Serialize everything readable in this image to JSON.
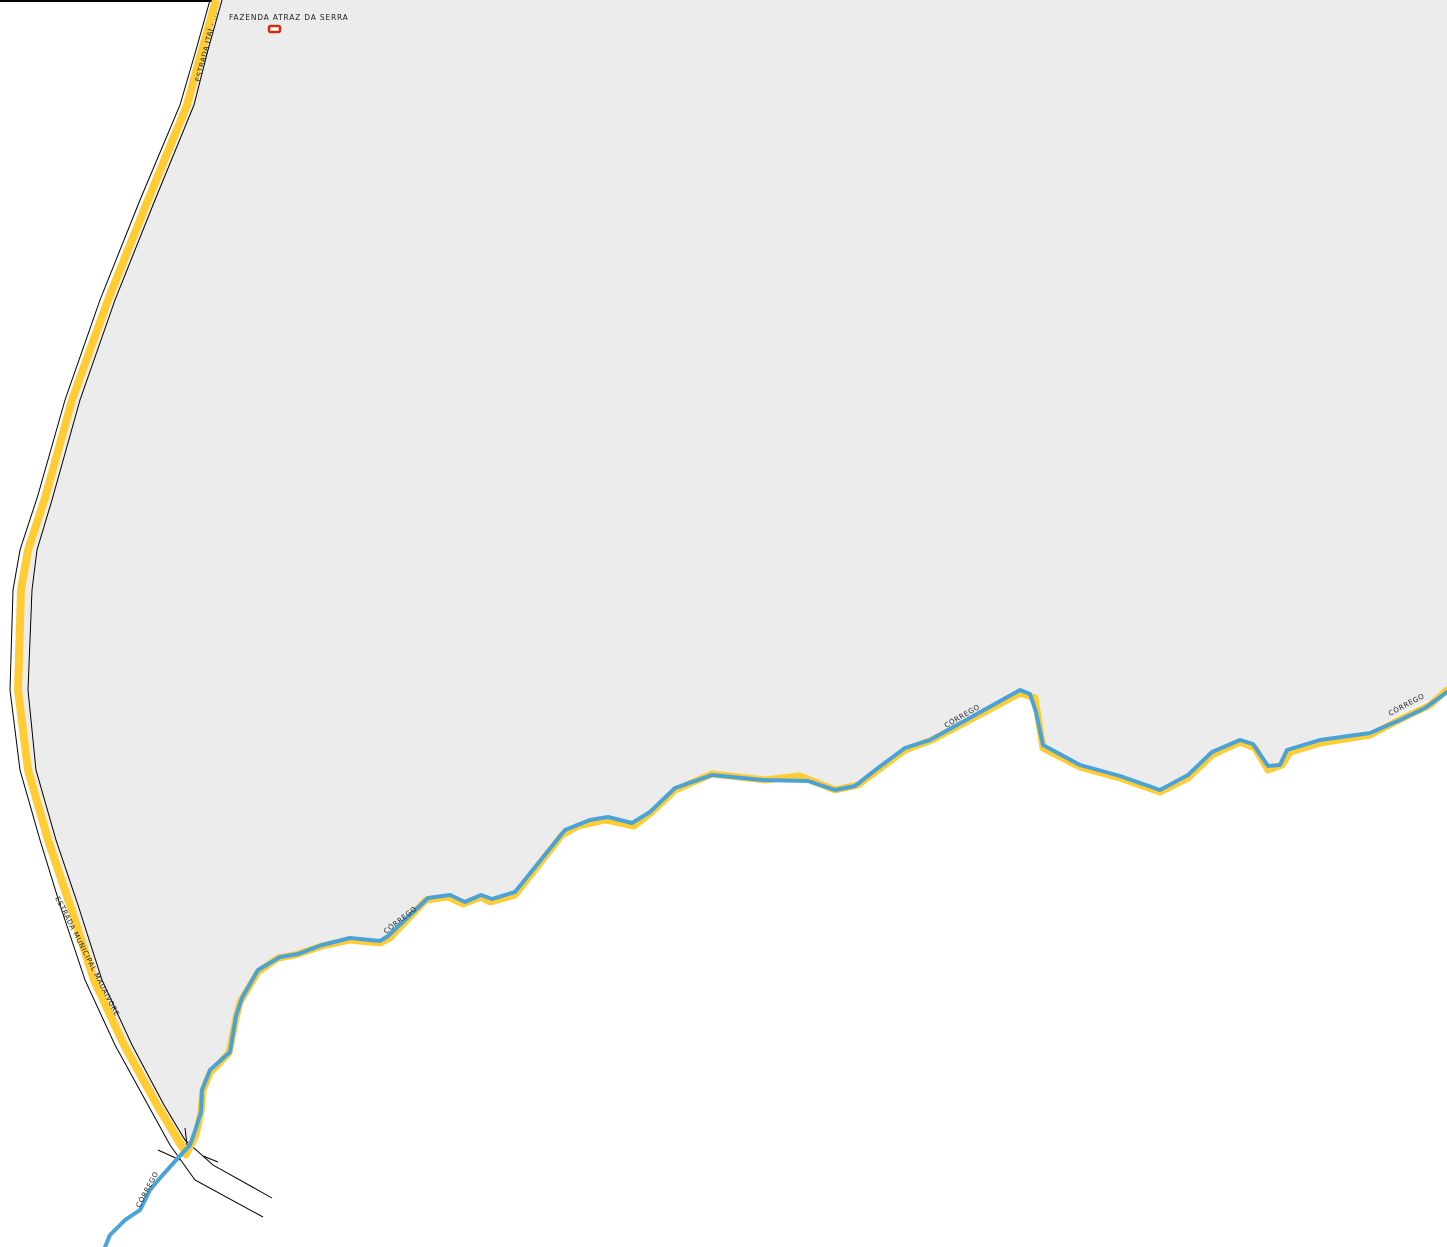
{
  "map": {
    "colors": {
      "background": "#ffffff",
      "area_fill": "#ececec",
      "road_casing": "#000000",
      "road_fill": "#ffcc33",
      "river": "#4aa3d8",
      "place_marker": "#d22a10",
      "frame": "#000000"
    },
    "labels": {
      "place_name": "FAZENDA ATRAZ DA SERRA",
      "road_top": "ESTRADA ITAÍ - ...",
      "road_left": "ESTRADA MUNICIPAL MAUAIVORE",
      "river_1": "CÓRREGO",
      "river_2": "CÓRREGO",
      "river_3": "CÓRREGO",
      "river_4": "CÓRREGO"
    },
    "icons": {
      "place_marker": "place-marker-icon"
    }
  }
}
